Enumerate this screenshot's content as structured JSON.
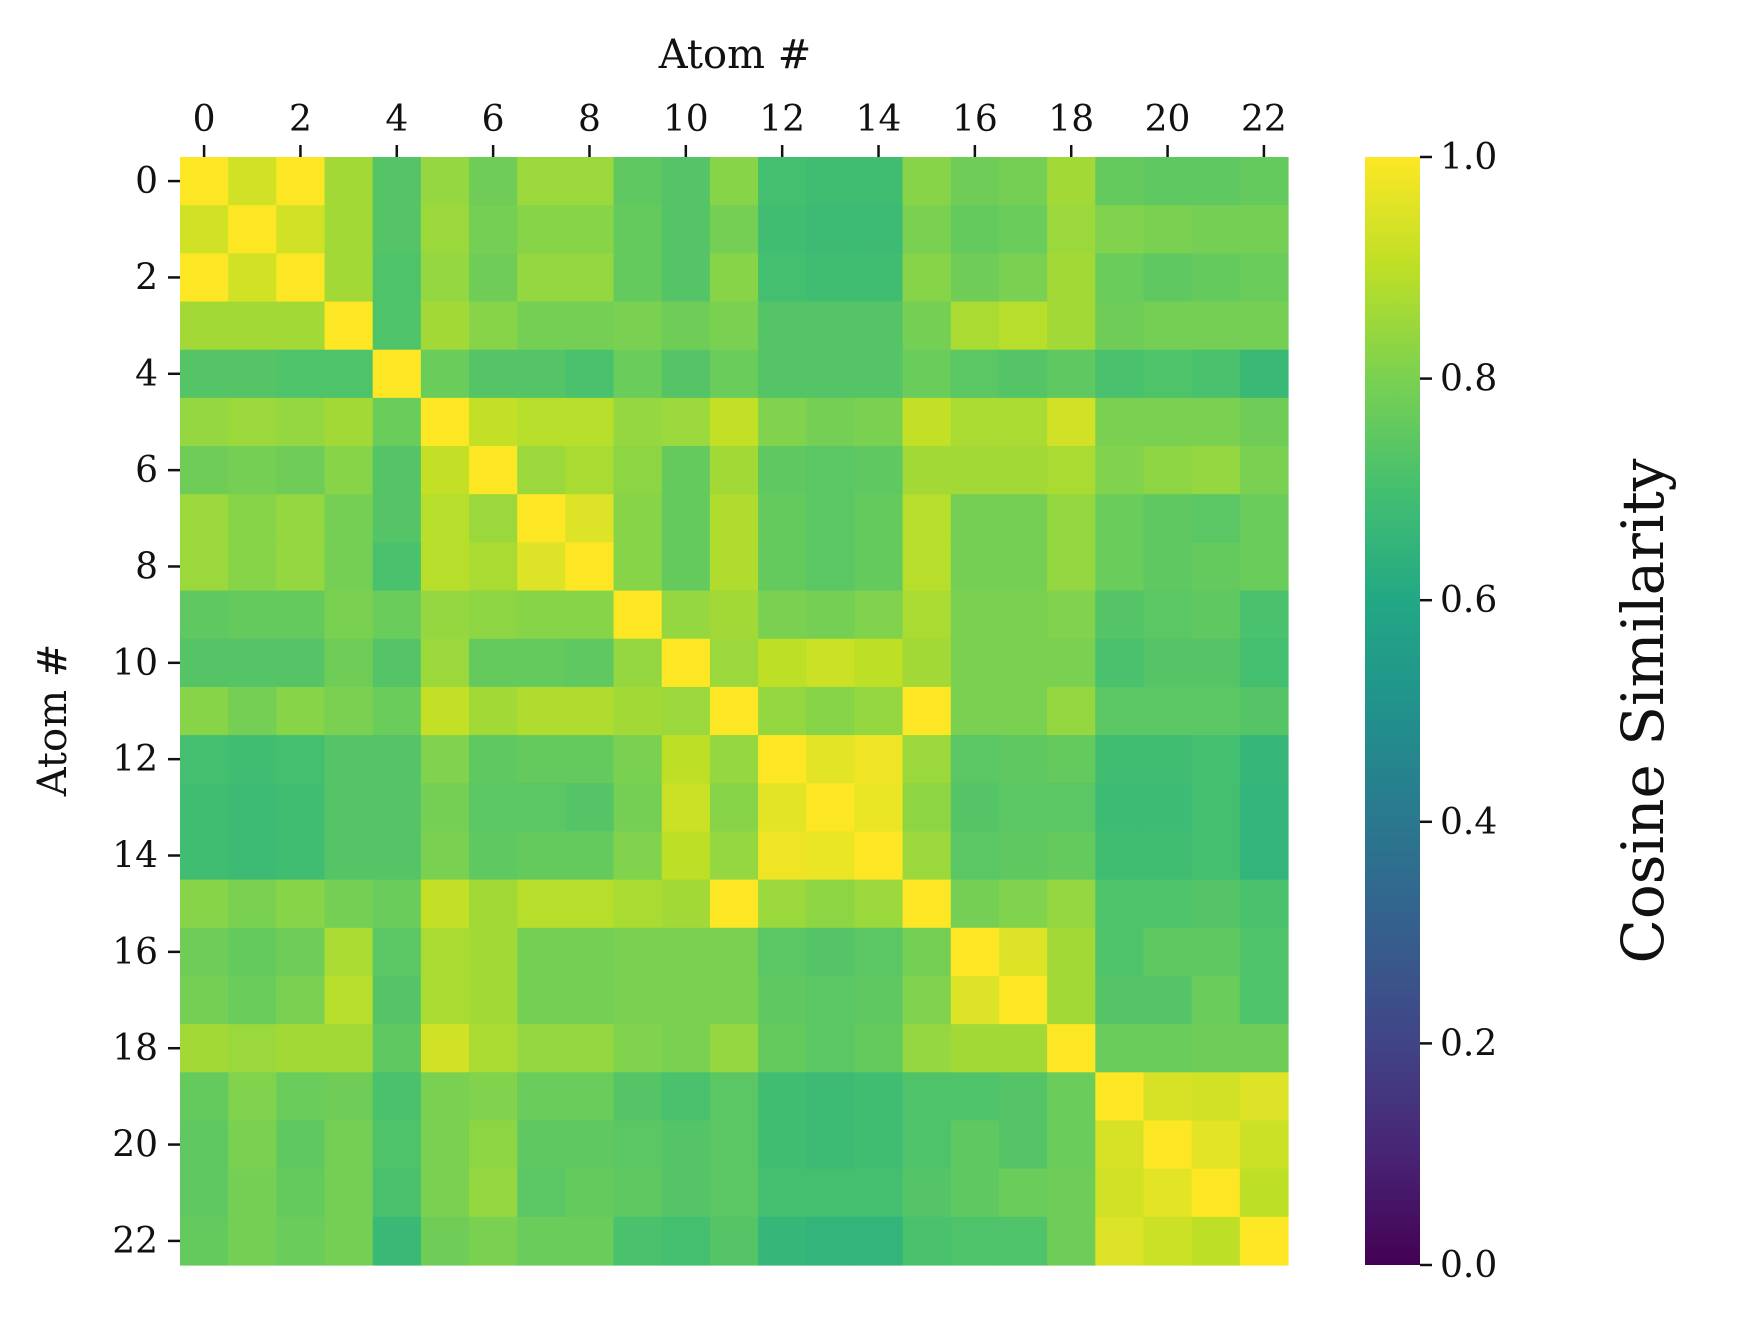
{
  "chart_data": {
    "type": "heatmap",
    "title": "",
    "xlabel": "Atom #",
    "ylabel": "Atom #",
    "x_ticks": [
      "0",
      "2",
      "4",
      "6",
      "8",
      "10",
      "12",
      "14",
      "16",
      "18",
      "20",
      "22"
    ],
    "y_ticks": [
      "0",
      "2",
      "4",
      "6",
      "8",
      "10",
      "12",
      "14",
      "16",
      "18",
      "20",
      "22"
    ],
    "x_axis_position": "top",
    "colormap": "viridis",
    "vmin": 0.0,
    "vmax": 1.0,
    "colorbar": {
      "label": "Cosine Similarity",
      "ticks": [
        "0.0",
        "0.2",
        "0.4",
        "0.6",
        "0.8",
        "1.0"
      ],
      "tick_values": [
        0.0,
        0.2,
        0.4,
        0.6,
        0.8,
        1.0
      ],
      "position": "right"
    },
    "grid": false,
    "matrix": [
      [
        1.0,
        0.93,
        1.0,
        0.86,
        0.73,
        0.84,
        0.78,
        0.85,
        0.85,
        0.75,
        0.73,
        0.82,
        0.7,
        0.69,
        0.69,
        0.82,
        0.78,
        0.79,
        0.86,
        0.76,
        0.75,
        0.75,
        0.76
      ],
      [
        0.93,
        1.0,
        0.93,
        0.86,
        0.73,
        0.85,
        0.79,
        0.82,
        0.82,
        0.76,
        0.73,
        0.79,
        0.69,
        0.68,
        0.68,
        0.8,
        0.76,
        0.77,
        0.85,
        0.81,
        0.8,
        0.79,
        0.79
      ],
      [
        1.0,
        0.93,
        1.0,
        0.86,
        0.72,
        0.84,
        0.78,
        0.84,
        0.84,
        0.76,
        0.73,
        0.82,
        0.7,
        0.69,
        0.69,
        0.82,
        0.78,
        0.8,
        0.86,
        0.77,
        0.75,
        0.76,
        0.77
      ],
      [
        0.86,
        0.86,
        0.86,
        1.0,
        0.72,
        0.86,
        0.82,
        0.79,
        0.79,
        0.8,
        0.78,
        0.8,
        0.73,
        0.73,
        0.73,
        0.79,
        0.87,
        0.89,
        0.86,
        0.78,
        0.79,
        0.79,
        0.79
      ],
      [
        0.73,
        0.73,
        0.72,
        0.72,
        1.0,
        0.77,
        0.73,
        0.73,
        0.71,
        0.77,
        0.73,
        0.77,
        0.73,
        0.73,
        0.73,
        0.77,
        0.74,
        0.73,
        0.75,
        0.71,
        0.72,
        0.71,
        0.67
      ],
      [
        0.84,
        0.85,
        0.84,
        0.86,
        0.77,
        1.0,
        0.91,
        0.89,
        0.89,
        0.84,
        0.85,
        0.91,
        0.81,
        0.79,
        0.8,
        0.91,
        0.87,
        0.87,
        0.93,
        0.8,
        0.8,
        0.8,
        0.78
      ],
      [
        0.78,
        0.79,
        0.78,
        0.82,
        0.73,
        0.91,
        1.0,
        0.85,
        0.87,
        0.83,
        0.76,
        0.86,
        0.75,
        0.74,
        0.75,
        0.86,
        0.86,
        0.86,
        0.87,
        0.81,
        0.83,
        0.84,
        0.8
      ],
      [
        0.85,
        0.82,
        0.84,
        0.79,
        0.73,
        0.89,
        0.85,
        1.0,
        0.95,
        0.82,
        0.76,
        0.88,
        0.76,
        0.74,
        0.76,
        0.89,
        0.79,
        0.79,
        0.84,
        0.77,
        0.75,
        0.74,
        0.77
      ],
      [
        0.85,
        0.82,
        0.84,
        0.79,
        0.71,
        0.89,
        0.87,
        0.95,
        1.0,
        0.82,
        0.76,
        0.88,
        0.76,
        0.74,
        0.76,
        0.89,
        0.79,
        0.79,
        0.84,
        0.77,
        0.75,
        0.76,
        0.77
      ],
      [
        0.75,
        0.76,
        0.76,
        0.8,
        0.77,
        0.84,
        0.83,
        0.82,
        0.82,
        1.0,
        0.84,
        0.86,
        0.8,
        0.79,
        0.81,
        0.87,
        0.8,
        0.8,
        0.81,
        0.73,
        0.74,
        0.75,
        0.71
      ],
      [
        0.73,
        0.73,
        0.73,
        0.78,
        0.73,
        0.85,
        0.76,
        0.76,
        0.75,
        0.84,
        1.0,
        0.85,
        0.9,
        0.92,
        0.9,
        0.86,
        0.8,
        0.8,
        0.8,
        0.71,
        0.73,
        0.73,
        0.7
      ],
      [
        0.82,
        0.79,
        0.82,
        0.8,
        0.77,
        0.91,
        0.86,
        0.88,
        0.88,
        0.86,
        0.85,
        1.0,
        0.84,
        0.82,
        0.84,
        1.0,
        0.8,
        0.8,
        0.84,
        0.74,
        0.74,
        0.74,
        0.73
      ],
      [
        0.7,
        0.69,
        0.7,
        0.73,
        0.73,
        0.81,
        0.75,
        0.76,
        0.76,
        0.8,
        0.9,
        0.84,
        1.0,
        0.96,
        0.98,
        0.85,
        0.74,
        0.75,
        0.76,
        0.69,
        0.69,
        0.7,
        0.66
      ],
      [
        0.69,
        0.68,
        0.69,
        0.73,
        0.73,
        0.79,
        0.74,
        0.74,
        0.73,
        0.79,
        0.92,
        0.82,
        0.96,
        1.0,
        0.97,
        0.83,
        0.73,
        0.74,
        0.74,
        0.68,
        0.68,
        0.7,
        0.65
      ],
      [
        0.69,
        0.68,
        0.69,
        0.73,
        0.73,
        0.8,
        0.75,
        0.76,
        0.76,
        0.81,
        0.9,
        0.84,
        0.98,
        0.97,
        1.0,
        0.85,
        0.74,
        0.75,
        0.76,
        0.69,
        0.69,
        0.7,
        0.65
      ],
      [
        0.82,
        0.8,
        0.82,
        0.79,
        0.77,
        0.91,
        0.86,
        0.89,
        0.89,
        0.87,
        0.86,
        1.0,
        0.85,
        0.83,
        0.85,
        1.0,
        0.79,
        0.81,
        0.84,
        0.72,
        0.72,
        0.73,
        0.71
      ],
      [
        0.78,
        0.76,
        0.78,
        0.87,
        0.74,
        0.87,
        0.86,
        0.79,
        0.79,
        0.8,
        0.8,
        0.8,
        0.74,
        0.73,
        0.74,
        0.79,
        1.0,
        0.95,
        0.86,
        0.72,
        0.75,
        0.75,
        0.72
      ],
      [
        0.79,
        0.77,
        0.8,
        0.89,
        0.73,
        0.87,
        0.86,
        0.79,
        0.79,
        0.8,
        0.8,
        0.8,
        0.75,
        0.74,
        0.75,
        0.81,
        0.95,
        1.0,
        0.86,
        0.73,
        0.73,
        0.77,
        0.72
      ],
      [
        0.86,
        0.85,
        0.86,
        0.86,
        0.75,
        0.93,
        0.87,
        0.84,
        0.84,
        0.81,
        0.8,
        0.84,
        0.76,
        0.74,
        0.76,
        0.84,
        0.86,
        0.86,
        1.0,
        0.77,
        0.77,
        0.78,
        0.78
      ],
      [
        0.76,
        0.81,
        0.77,
        0.78,
        0.71,
        0.8,
        0.81,
        0.77,
        0.77,
        0.73,
        0.71,
        0.74,
        0.69,
        0.68,
        0.69,
        0.72,
        0.72,
        0.73,
        0.77,
        1.0,
        0.94,
        0.93,
        0.95
      ],
      [
        0.75,
        0.8,
        0.75,
        0.79,
        0.72,
        0.8,
        0.83,
        0.75,
        0.75,
        0.74,
        0.73,
        0.74,
        0.69,
        0.68,
        0.69,
        0.72,
        0.75,
        0.73,
        0.77,
        0.94,
        1.0,
        0.96,
        0.92
      ],
      [
        0.75,
        0.79,
        0.76,
        0.79,
        0.71,
        0.8,
        0.84,
        0.74,
        0.76,
        0.75,
        0.73,
        0.74,
        0.7,
        0.7,
        0.7,
        0.73,
        0.75,
        0.77,
        0.78,
        0.93,
        0.96,
        1.0,
        0.9
      ],
      [
        0.76,
        0.79,
        0.77,
        0.79,
        0.67,
        0.78,
        0.8,
        0.77,
        0.77,
        0.71,
        0.7,
        0.73,
        0.66,
        0.65,
        0.65,
        0.71,
        0.72,
        0.72,
        0.78,
        0.95,
        0.92,
        0.9,
        1.0
      ]
    ]
  }
}
